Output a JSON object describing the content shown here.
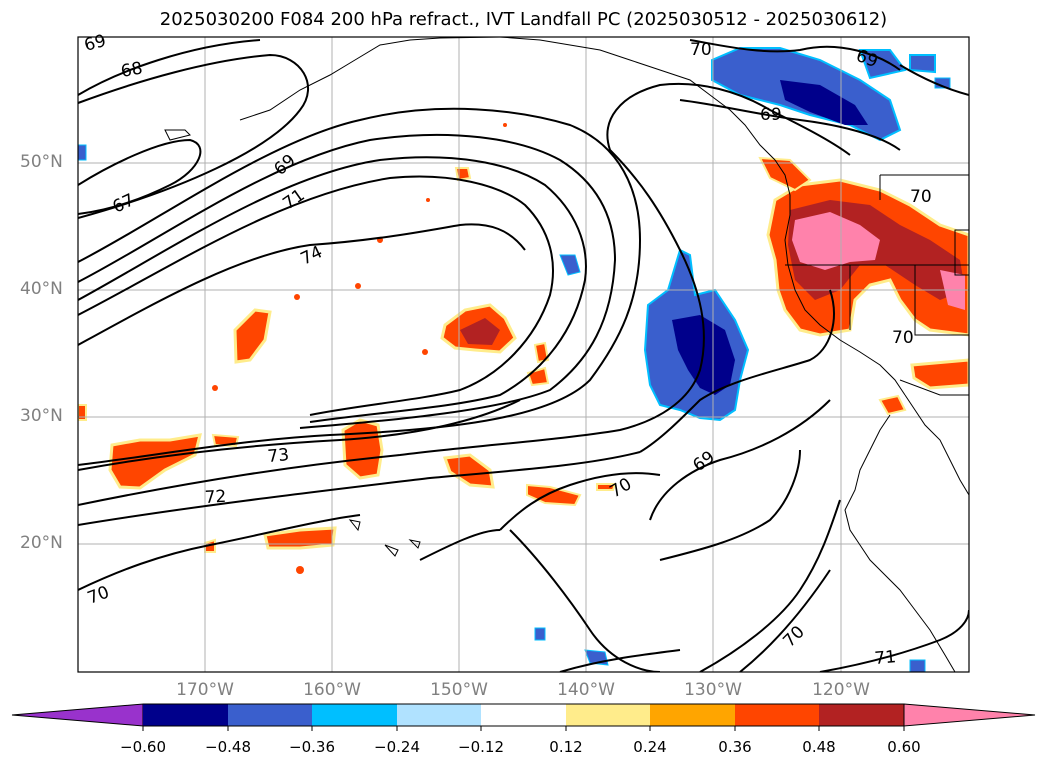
{
  "title": "2025030200 F084 200 hPa refract., IVT Landfall PC (2025030512 - 2025030612)",
  "lat_labels": [
    "50°N",
    "40°N",
    "30°N",
    "20°N"
  ],
  "lon_labels": [
    "170°W",
    "160°W",
    "150°W",
    "140°W",
    "130°W",
    "120°W"
  ],
  "contour_labels": [
    "69",
    "68",
    "67",
    "69",
    "71",
    "74",
    "73",
    "72",
    "70",
    "70",
    "69",
    "70",
    "69",
    "69",
    "70",
    "70",
    "71",
    "70"
  ],
  "colorbar": {
    "tick_labels": [
      "−0.60",
      "−0.48",
      "−0.36",
      "−0.24",
      "−0.12",
      "0.12",
      "0.24",
      "0.36",
      "0.48",
      "0.60"
    ],
    "colors": [
      "#9932cc",
      "#00008b",
      "#3a5fcd",
      "#00bfff",
      "#b0e2ff",
      "#ffffff",
      "#ffec8b",
      "#ffa500",
      "#ff4500",
      "#b22222",
      "#ff82ab"
    ]
  },
  "colors": {
    "contour": "#000000",
    "coast": "#000000",
    "grid": "#b0b0b0"
  }
}
